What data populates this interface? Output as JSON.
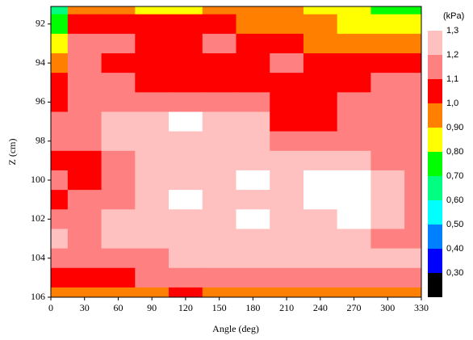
{
  "chart_data": {
    "type": "contour",
    "x_label": "Angle (deg)",
    "y_label": "Z (cm)",
    "x": [
      0,
      30,
      60,
      90,
      120,
      150,
      180,
      210,
      240,
      270,
      300,
      330
    ],
    "y": [
      91,
      92,
      93,
      94,
      95,
      96,
      97,
      98,
      99,
      100,
      101,
      102,
      103,
      104,
      105,
      106
    ],
    "z": [
      [
        0.6,
        0.95,
        0.95,
        0.85,
        0.85,
        0.95,
        0.95,
        0.9,
        0.85,
        0.85,
        0.75,
        0.75
      ],
      [
        0.7,
        1.05,
        1.05,
        1.0,
        1.0,
        1.05,
        0.98,
        0.95,
        0.9,
        0.88,
        0.85,
        0.85
      ],
      [
        0.85,
        1.1,
        1.1,
        1.05,
        1.05,
        1.1,
        1.05,
        1.02,
        0.98,
        0.95,
        0.95,
        0.95
      ],
      [
        0.95,
        1.15,
        1.08,
        1.05,
        1.05,
        1.05,
        1.05,
        1.15,
        1.05,
        1.05,
        1.02,
        1.0
      ],
      [
        1.0,
        1.1,
        1.12,
        1.05,
        1.05,
        1.05,
        1.05,
        1.05,
        1.05,
        1.05,
        1.15,
        1.1
      ],
      [
        1.05,
        1.12,
        1.15,
        1.15,
        1.15,
        1.12,
        1.1,
        1.05,
        1.05,
        1.1,
        1.15,
        1.12
      ],
      [
        1.1,
        1.15,
        1.22,
        1.3,
        1.35,
        1.25,
        1.22,
        1.08,
        1.08,
        1.12,
        1.15,
        1.15
      ],
      [
        1.1,
        1.15,
        1.2,
        1.25,
        1.25,
        1.25,
        1.2,
        1.15,
        1.15,
        1.15,
        1.15,
        1.15
      ],
      [
        1.08,
        1.05,
        1.15,
        1.22,
        1.25,
        1.25,
        1.25,
        1.22,
        1.22,
        1.22,
        1.18,
        1.15
      ],
      [
        1.1,
        1.05,
        1.15,
        1.25,
        1.25,
        1.25,
        1.35,
        1.25,
        1.35,
        1.35,
        1.25,
        1.15
      ],
      [
        1.05,
        1.1,
        1.18,
        1.3,
        1.35,
        1.25,
        1.25,
        1.25,
        1.35,
        1.35,
        1.25,
        1.15
      ],
      [
        1.12,
        1.15,
        1.2,
        1.25,
        1.25,
        1.25,
        1.35,
        1.25,
        1.3,
        1.35,
        1.22,
        1.15
      ],
      [
        1.2,
        1.15,
        1.2,
        1.25,
        1.25,
        1.25,
        1.28,
        1.25,
        1.25,
        1.3,
        1.18,
        1.15
      ],
      [
        1.15,
        1.15,
        1.15,
        1.18,
        1.2,
        1.22,
        1.3,
        1.22,
        1.22,
        1.22,
        1.2,
        1.2
      ],
      [
        1.05,
        1.05,
        1.08,
        1.1,
        1.12,
        1.15,
        1.12,
        1.12,
        1.12,
        1.1,
        1.12,
        1.1
      ],
      [
        0.9,
        0.95,
        0.98,
        0.9,
        1.0,
        0.98,
        0.95,
        0.98,
        0.95,
        0.95,
        0.98,
        0.95
      ]
    ],
    "xlim": [
      0,
      330
    ],
    "xticks": [
      0,
      30,
      60,
      90,
      120,
      150,
      180,
      210,
      240,
      270,
      300,
      330
    ],
    "ylim": [
      106,
      91.1
    ],
    "yticks": [
      92,
      94,
      96,
      98,
      100,
      102,
      104,
      106
    ],
    "colorbar": {
      "label": "(kPa)",
      "lim": [
        0.2,
        1.3
      ],
      "ticks": [
        {
          "value": 0.3,
          "label": "0,30"
        },
        {
          "value": 0.4,
          "label": "0,40"
        },
        {
          "value": 0.5,
          "label": "0,50"
        },
        {
          "value": 0.6,
          "label": "0,60"
        },
        {
          "value": 0.7,
          "label": "0,70"
        },
        {
          "value": 0.8,
          "label": "0,80"
        },
        {
          "value": 0.9,
          "label": "0,90"
        },
        {
          "value": 1.0,
          "label": "1,0"
        },
        {
          "value": 1.1,
          "label": "1,1"
        },
        {
          "value": 1.2,
          "label": "1,2"
        },
        {
          "value": 1.3,
          "label": "1,3"
        }
      ],
      "colors": [
        "#000000",
        "#0000ff",
        "#0080ff",
        "#00ffff",
        "#00ff80",
        "#00ff00",
        "#ffff00",
        "#ff8000",
        "#ff0000",
        "#ff8080",
        "#ffc0c0"
      ],
      "above_color": "#ffffff"
    }
  }
}
